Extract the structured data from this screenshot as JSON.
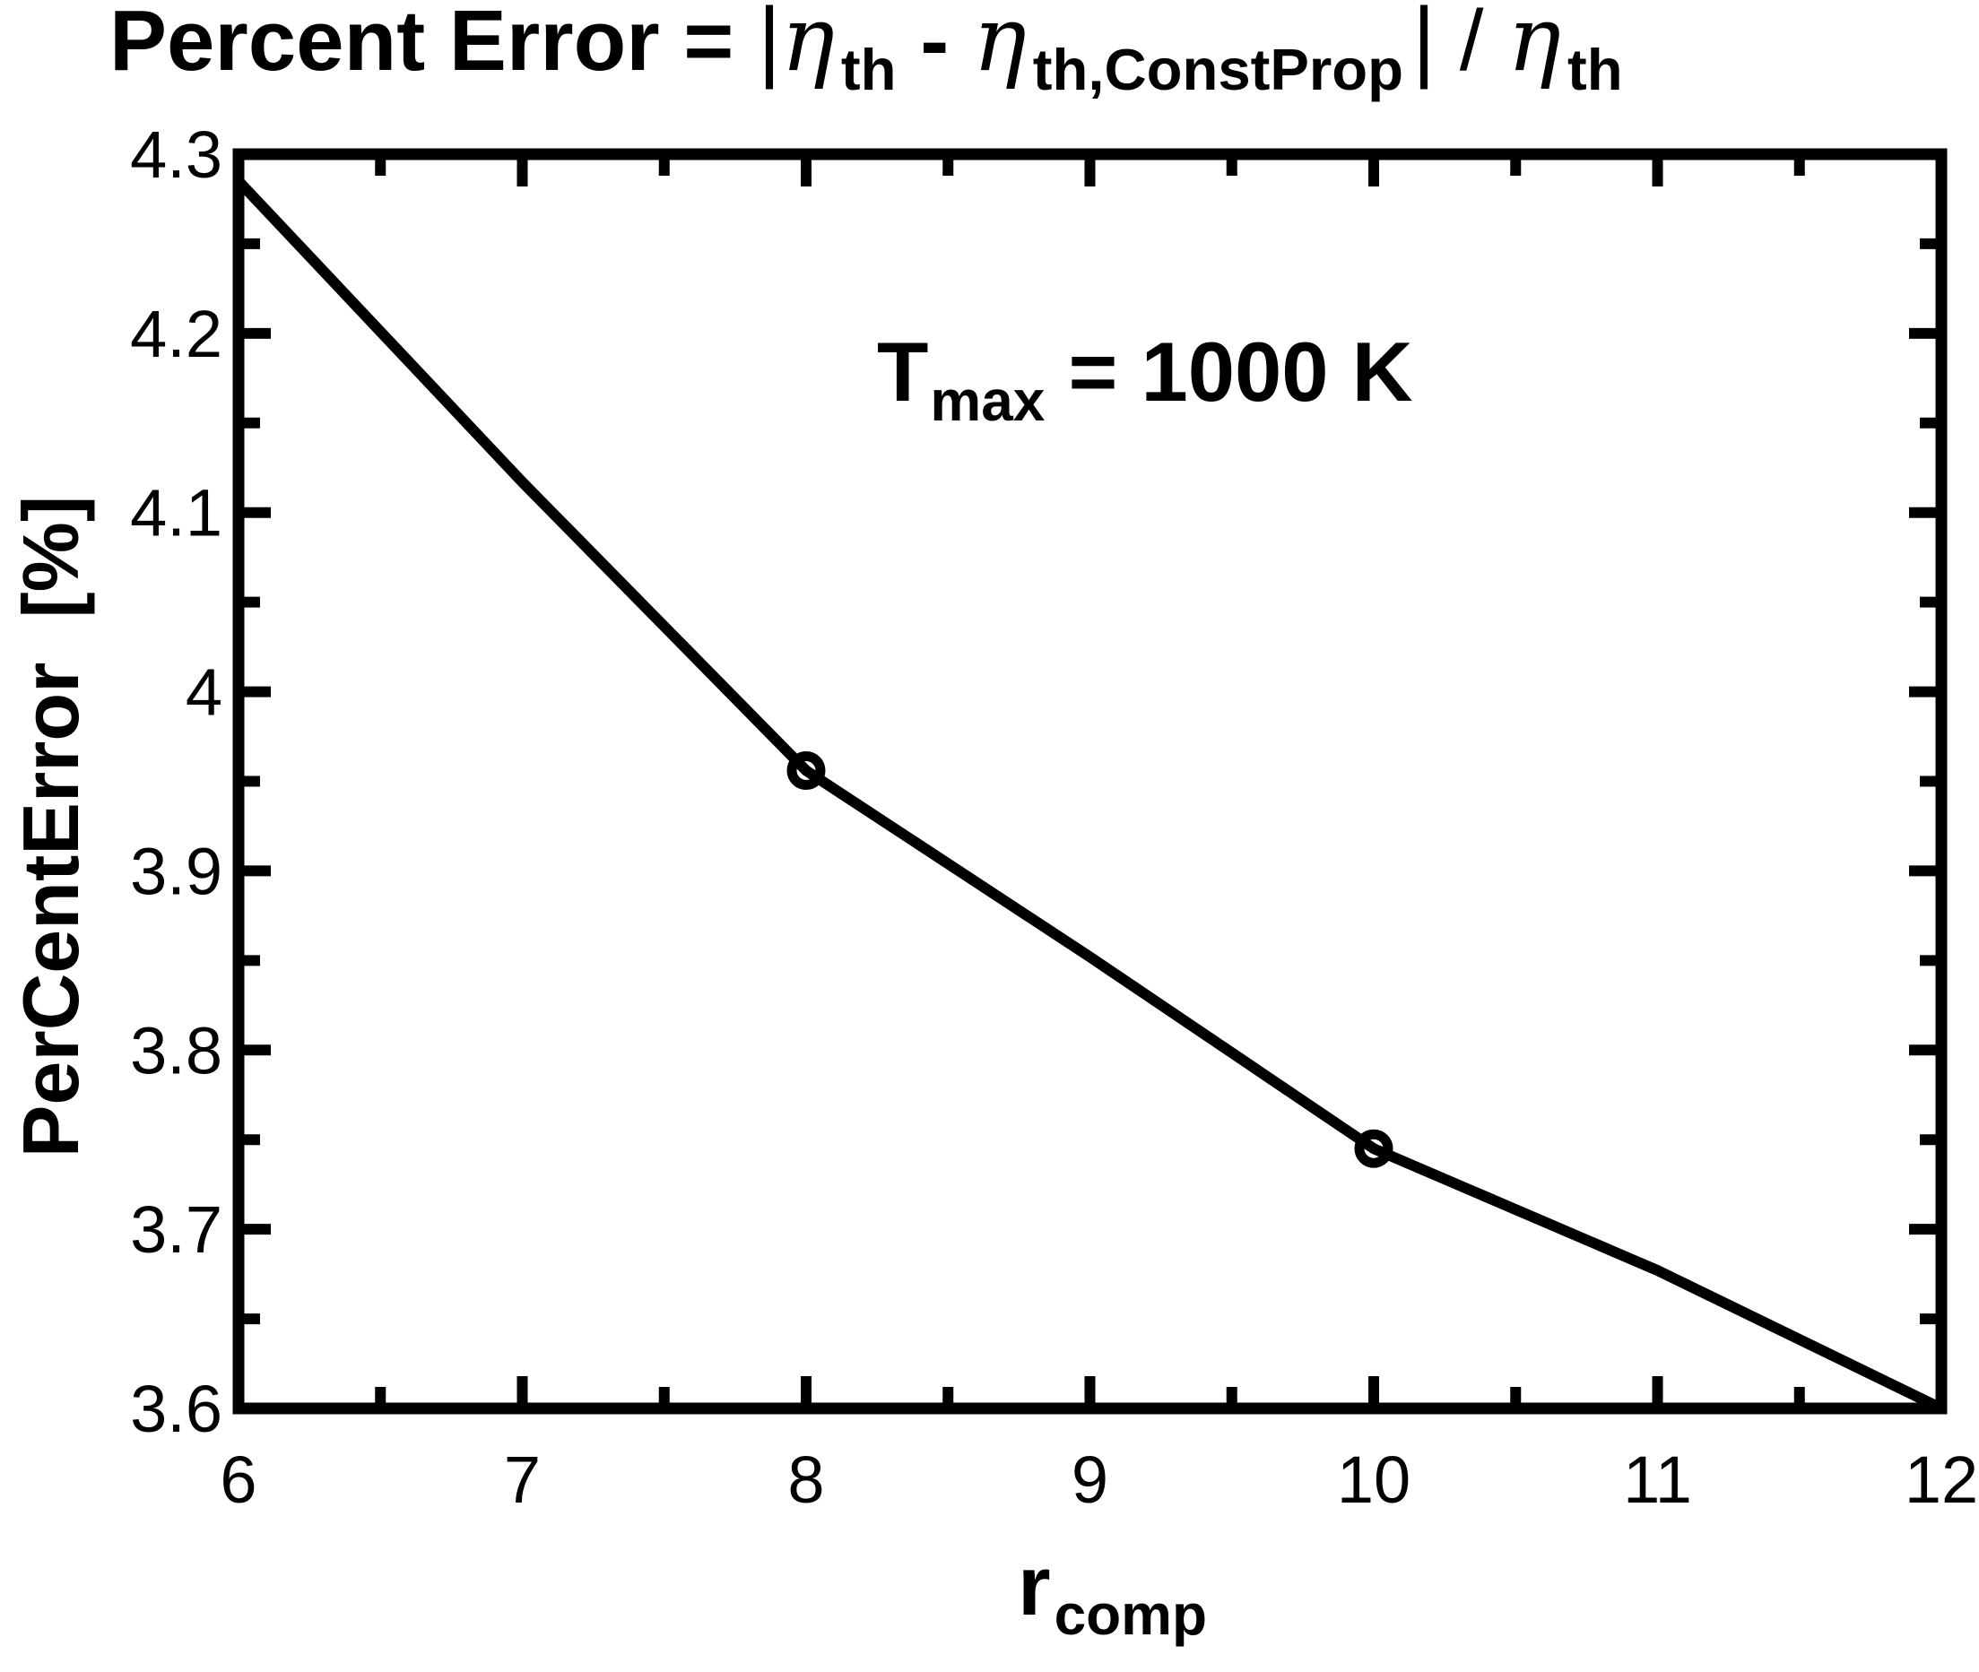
{
  "title": {
    "prefix": "Percent Error = ",
    "bar1": "|",
    "eta1": "η",
    "sub1": "th",
    "minus": " - ",
    "eta2": "η",
    "sub2": "th,ConstProp",
    "bar2": "|",
    "slash": " / ",
    "eta3": "η",
    "sub3": "th"
  },
  "annotation": {
    "t": "T",
    "sub": "max",
    "rest": " = 1000 K"
  },
  "axes": {
    "y_label": "PerCentError  [%]",
    "x_label_base": "r",
    "x_label_sub": "comp"
  },
  "chart_data": {
    "type": "line",
    "title": "Percent Error = |η_th - η_th,ConstProp| / η_th",
    "xlabel": "r_comp",
    "ylabel": "PerCentError [%]",
    "x": [
      6,
      7,
      8,
      9,
      10,
      11,
      12
    ],
    "y": [
      4.285,
      4.117,
      3.956,
      3.852,
      3.745,
      3.677,
      3.6
    ],
    "marker_points": [
      [
        8,
        3.956
      ],
      [
        10,
        3.745
      ]
    ],
    "xlim": [
      6,
      12
    ],
    "ylim": [
      3.6,
      4.3
    ],
    "x_major_ticks": [
      6,
      7,
      8,
      9,
      10,
      11,
      12
    ],
    "x_tick_labels": [
      "6",
      "7",
      "8",
      "9",
      "10",
      "11",
      "12"
    ],
    "x_minor_ticks": [
      6.5,
      7.5,
      8.5,
      9.5,
      10.5,
      11.5
    ],
    "y_major_ticks": [
      3.6,
      3.7,
      3.8,
      3.9,
      4.0,
      4.1,
      4.2,
      4.3
    ],
    "y_tick_labels": [
      "3.6",
      "3.7",
      "3.8",
      "3.9",
      "4",
      "4.1",
      "4.2",
      "4.3"
    ],
    "y_minor_ticks": [
      3.65,
      3.75,
      3.85,
      3.95,
      4.05,
      4.15,
      4.25
    ],
    "grid": false,
    "legend": false,
    "line_color": "#000000",
    "marker_style": "open-circle",
    "background": "#ffffff"
  }
}
